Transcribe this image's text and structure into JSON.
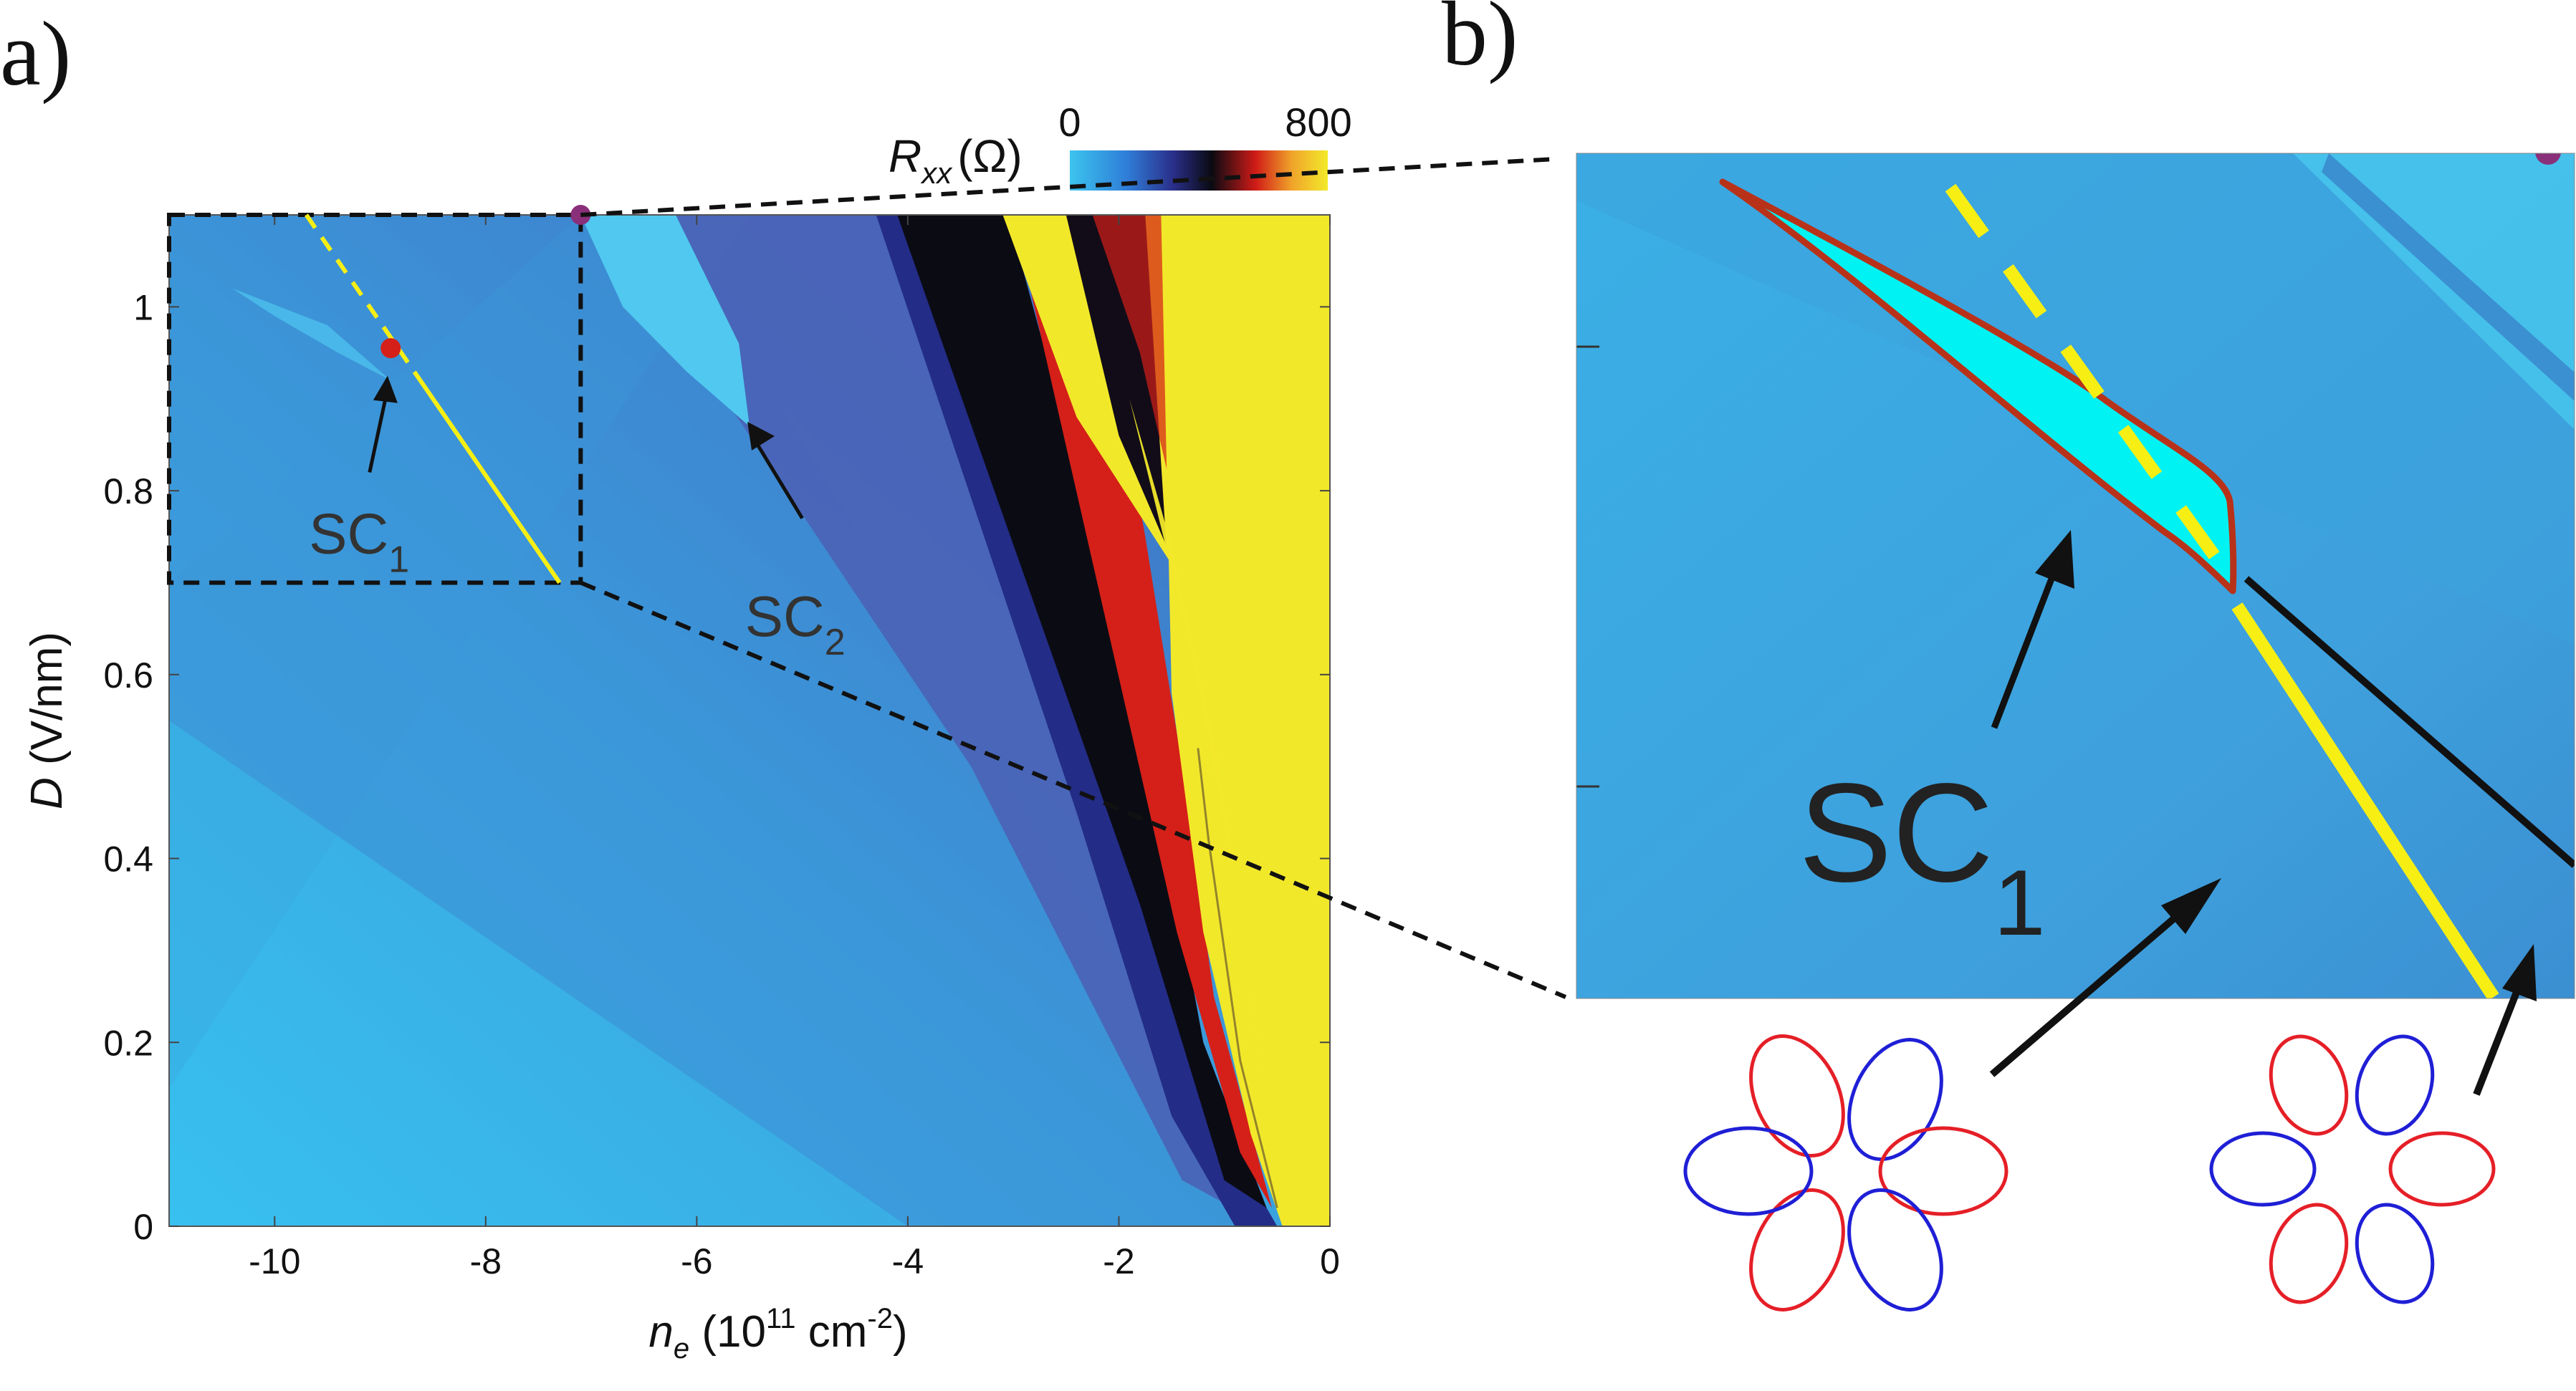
{
  "panels": {
    "a_label": "a)",
    "b_label": "b)"
  },
  "colorbar": {
    "label_main": "R",
    "label_sub": "xx",
    "label_unit": "(Ω)",
    "min_label": "0",
    "max_label": "800",
    "colors": [
      "#3cc4ee",
      "#2f7ed8",
      "#2a2f8a",
      "#0a0a12",
      "#d01b17",
      "#f0a32a",
      "#f3ea2a"
    ]
  },
  "colors": {
    "background_blue": "#38b6ea",
    "mid_blue": "#3f80cc",
    "dark_blue": "#232c86",
    "red": "#d42018",
    "yellow": "#f2e82a",
    "sc1_fill": "#00f2f2",
    "sc1_outline": "#b8321a",
    "guide_yellow": "#f7ef14",
    "valley_red": "#e51f27",
    "valley_blue": "#1f1fd6"
  },
  "chart_data": {
    "type": "heatmap",
    "quantity": "R_xx (Ω)",
    "xlabel_main": "n",
    "xlabel_sub": "e",
    "xlabel_rest": " (10",
    "xlabel_sup1": "11",
    "xlabel_rest2": " cm",
    "xlabel_sup2": "-2",
    "xlabel_end": ")",
    "ylabel_main": "D",
    "ylabel_rest": " (V/nm)",
    "xlim": [
      -11,
      0
    ],
    "ylim": [
      0,
      1.1
    ],
    "zlim": [
      0,
      800
    ],
    "xticks": [
      -10,
      -8,
      -6,
      -4,
      -2,
      0
    ],
    "yticks": [
      0,
      0.2,
      0.4,
      0.6,
      0.8,
      1
    ],
    "xtick_labels": [
      "-10",
      "-8",
      "-6",
      "-4",
      "-2",
      "0"
    ],
    "ytick_labels": [
      "0",
      "0.2",
      "0.4",
      "0.6",
      "0.8",
      "1"
    ],
    "zoom_box": {
      "x": [
        -11,
        -7.1
      ],
      "y": [
        0.7,
        1.1
      ]
    },
    "guide_line": {
      "x": [
        -9.7,
        -7.3
      ],
      "y": [
        1.1,
        0.7
      ]
    },
    "points": [
      {
        "name": "red dot",
        "x": -8.9,
        "y": 0.955,
        "color": "#d42018"
      },
      {
        "name": "purple dot",
        "x": -7.1,
        "y": 1.1,
        "color": "#8a2f7a"
      }
    ],
    "annotations": [
      {
        "text_main": "SC",
        "text_sub": "1",
        "x": -9.2,
        "y": 0.76
      },
      {
        "text_main": "SC",
        "text_sub": "2",
        "x": -5.0,
        "y": 0.67
      }
    ]
  },
  "inset": {
    "label_main": "SC",
    "label_sub": "1"
  }
}
